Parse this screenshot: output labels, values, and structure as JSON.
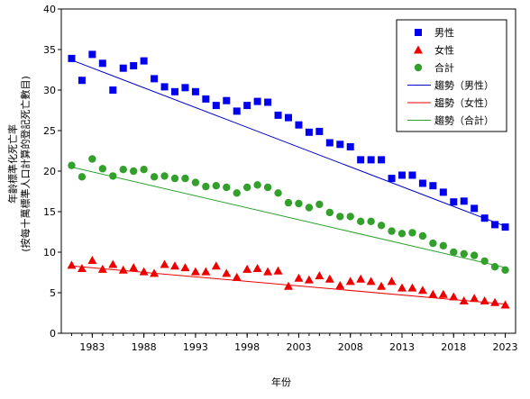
{
  "chart_data": {
    "type": "scatter",
    "xlabel": "年份",
    "ylabel": [
      "年齡標準化死亡率",
      "(按每十萬標準人口計算的登記死亡數目)"
    ],
    "xlim": [
      1980,
      2024
    ],
    "ylim": [
      0,
      40
    ],
    "xticks": [
      1983,
      1988,
      1993,
      1998,
      2003,
      2008,
      2013,
      2018,
      2023
    ],
    "yticks": [
      0,
      5,
      10,
      15,
      20,
      25,
      30,
      35,
      40
    ],
    "grid": false,
    "legend_position": "top-right",
    "x": [
      1981,
      1982,
      1983,
      1984,
      1985,
      1986,
      1987,
      1988,
      1989,
      1990,
      1991,
      1992,
      1993,
      1994,
      1995,
      1996,
      1997,
      1998,
      1999,
      2000,
      2001,
      2002,
      2003,
      2004,
      2005,
      2006,
      2007,
      2008,
      2009,
      2010,
      2011,
      2012,
      2013,
      2014,
      2015,
      2016,
      2017,
      2018,
      2019,
      2020,
      2021,
      2022,
      2023
    ],
    "series": [
      {
        "name": "男性",
        "marker": "square",
        "color": "#0000ee",
        "values": [
          33.9,
          31.2,
          34.4,
          33.3,
          30.0,
          32.7,
          33.0,
          33.6,
          31.4,
          30.4,
          29.8,
          30.3,
          29.8,
          28.9,
          28.1,
          28.7,
          27.4,
          28.1,
          28.6,
          28.5,
          26.9,
          26.6,
          25.7,
          24.8,
          24.9,
          23.5,
          23.3,
          23.0,
          21.4,
          21.4,
          21.4,
          19.1,
          19.5,
          19.5,
          18.5,
          18.2,
          17.4,
          16.2,
          16.3,
          15.4,
          14.2,
          13.4,
          13.1
        ]
      },
      {
        "name": "女性",
        "marker": "triangle",
        "color": "#ee0000",
        "values": [
          8.4,
          8.0,
          9.0,
          7.9,
          8.5,
          7.8,
          8.1,
          7.6,
          7.4,
          8.5,
          8.3,
          8.1,
          7.6,
          7.6,
          8.3,
          7.4,
          6.9,
          7.9,
          8.0,
          7.6,
          7.7,
          5.8,
          6.8,
          6.6,
          7.1,
          6.7,
          5.9,
          6.4,
          6.7,
          6.4,
          5.8,
          6.4,
          5.6,
          5.6,
          5.3,
          4.8,
          4.8,
          4.5,
          4.0,
          4.3,
          4.0,
          3.8,
          3.5
        ]
      },
      {
        "name": "合計",
        "marker": "circle",
        "color": "#33a02c",
        "values": [
          20.7,
          19.3,
          21.5,
          20.3,
          19.4,
          20.2,
          20.0,
          20.2,
          19.3,
          19.4,
          19.1,
          19.1,
          18.6,
          18.1,
          18.2,
          18.0,
          17.3,
          18.0,
          18.3,
          18.0,
          17.3,
          16.1,
          16.0,
          15.5,
          15.9,
          14.9,
          14.4,
          14.4,
          13.8,
          13.8,
          13.3,
          12.6,
          12.3,
          12.4,
          12.0,
          11.1,
          10.8,
          10.0,
          9.8,
          9.6,
          8.9,
          8.2,
          7.8
        ]
      }
    ],
    "trendlines": [
      {
        "name": "趨勢（男性）",
        "color": "#0000cc",
        "start": [
          1981,
          33.7
        ],
        "end": [
          2023,
          13.2
        ]
      },
      {
        "name": "趨勢（女性）",
        "color": "#ee0000",
        "start": [
          1981,
          8.3
        ],
        "end": [
          2023,
          3.6
        ]
      },
      {
        "name": "趨勢（合計）",
        "color": "#2ca02c",
        "start": [
          1981,
          20.5
        ],
        "end": [
          2023,
          8.1
        ]
      }
    ]
  }
}
